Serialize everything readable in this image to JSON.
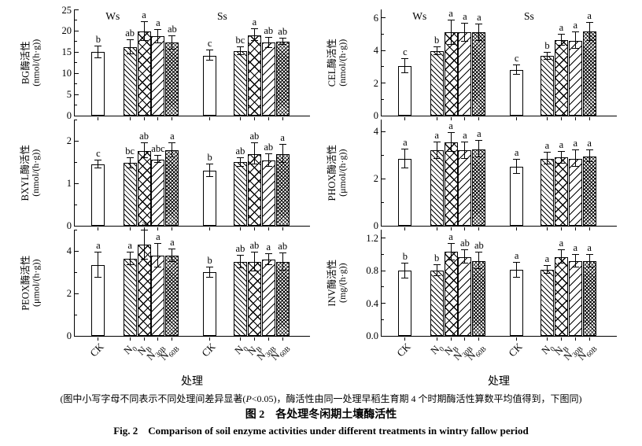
{
  "figure": {
    "group_labels": [
      "Ws",
      "Ss"
    ],
    "xaxis_title": "处理",
    "treatments": [
      {
        "main": "CK",
        "sub": ""
      },
      {
        "main": "N",
        "sub": "0"
      },
      {
        "main": "N",
        "sub": "B"
      },
      {
        "main": "N",
        "sub": "30B"
      },
      {
        "main": "N",
        "sub": "60B"
      }
    ],
    "caption": {
      "note_prefix": "(图中小写字母不同表示不同处理间差异显著(",
      "note_italic": "P",
      "note_suffix": "<0.05)，酶活性由同一处理早稻生育期 4 个时期酶活性算数平均值得到，下图同)",
      "title_cn": "图 2　各处理冬闲期土壤酶活性",
      "title_en": "Fig. 2　Comparison of soil enzyme activities under different treatments in wintry fallow period"
    },
    "colors": {
      "axis": "#000000",
      "bar_fill": "#ffffff",
      "hatch": "#000000"
    }
  },
  "chart_data": [
    {
      "type": "bar",
      "key": "BG",
      "ylabel_cn": "BG酶活性",
      "unit": "(nmol/(h·g))",
      "categories": [
        "CK",
        "N0",
        "NB",
        "N30B",
        "N60B"
      ],
      "ylim": [
        0,
        25
      ],
      "axis_top": 25,
      "major_ticks": [
        0,
        5,
        10,
        15,
        20,
        25
      ],
      "minor_step": 2.5,
      "tick_decimals": 0,
      "groups": [
        {
          "name": "Ws",
          "values": [
            15.0,
            16.2,
            19.9,
            18.7,
            17.2
          ],
          "errors": [
            1.4,
            1.7,
            2.3,
            1.6,
            1.5
          ],
          "letters": [
            "b",
            "ab",
            "a",
            "a",
            "ab"
          ]
        },
        {
          "name": "Ss",
          "values": [
            14.2,
            15.3,
            19.0,
            17.2,
            17.5
          ],
          "errors": [
            1.2,
            0.9,
            1.4,
            1.2,
            0.7
          ],
          "letters": [
            "c",
            "bc",
            "a",
            "ab",
            "ab"
          ]
        }
      ]
    },
    {
      "type": "bar",
      "key": "BXYL",
      "ylabel_cn": "BXYL酶活性",
      "unit": "(nmol/(h·g))",
      "categories": [
        "CK",
        "N0",
        "NB",
        "N30B",
        "N60B"
      ],
      "ylim": [
        0,
        2.5
      ],
      "axis_top": 2.5,
      "major_ticks": [
        0,
        1,
        2
      ],
      "minor_step": 0.5,
      "tick_decimals": 0,
      "groups": [
        {
          "name": "Ws",
          "values": [
            1.45,
            1.48,
            1.77,
            1.57,
            1.79
          ],
          "errors": [
            0.1,
            0.12,
            0.18,
            0.08,
            0.17
          ],
          "letters": [
            "c",
            "bc",
            "ab",
            "abc",
            "a"
          ]
        },
        {
          "name": "Ss",
          "values": [
            1.3,
            1.5,
            1.7,
            1.55,
            1.7
          ],
          "errors": [
            0.15,
            0.1,
            0.25,
            0.15,
            0.22
          ],
          "letters": [
            "b",
            "ab",
            "ab",
            "ab",
            "a"
          ]
        }
      ]
    },
    {
      "type": "bar",
      "key": "PEOX",
      "ylabel_cn": "PEOX酶活性",
      "unit": "(μmol/(h·g))",
      "categories": [
        "CK",
        "N0",
        "NB",
        "N30B",
        "N60B"
      ],
      "ylim": [
        0,
        5
      ],
      "axis_top": 5,
      "major_ticks": [
        0,
        2,
        4
      ],
      "minor_step": 1,
      "tick_decimals": 0,
      "groups": [
        {
          "name": "Ws",
          "values": [
            3.35,
            3.65,
            4.3,
            3.8,
            3.8
          ],
          "errors": [
            0.6,
            0.3,
            0.7,
            0.55,
            0.3
          ],
          "letters": [
            "a",
            "a",
            "a",
            "a",
            "a"
          ]
        },
        {
          "name": "Ss",
          "values": [
            3.0,
            3.5,
            3.5,
            3.6,
            3.5
          ],
          "errors": [
            0.25,
            0.3,
            0.45,
            0.25,
            0.4
          ],
          "letters": [
            "b",
            "ab",
            "ab",
            "a",
            "ab"
          ]
        }
      ]
    },
    {
      "type": "bar",
      "key": "CEL",
      "ylabel_cn": "CEL酶活性",
      "unit": "(nmol/(h·g))",
      "categories": [
        "CK",
        "N0",
        "NB",
        "N30B",
        "N60B"
      ],
      "ylim": [
        0,
        6.5
      ],
      "axis_top": 6.5,
      "major_ticks": [
        0,
        2,
        4,
        6
      ],
      "minor_step": 1,
      "tick_decimals": 0,
      "groups": [
        {
          "name": "Ws",
          "values": [
            3.05,
            3.95,
            5.1,
            5.1,
            5.1
          ],
          "errors": [
            0.45,
            0.25,
            0.75,
            0.55,
            0.5
          ],
          "letters": [
            "c",
            "b",
            "a",
            "a",
            "a"
          ]
        },
        {
          "name": "Ss",
          "values": [
            2.8,
            3.65,
            4.65,
            4.6,
            5.15
          ],
          "errors": [
            0.3,
            0.2,
            0.35,
            0.5,
            0.55
          ],
          "letters": [
            "c",
            "b",
            "a",
            "a",
            "a"
          ]
        }
      ]
    },
    {
      "type": "bar",
      "key": "PHOX",
      "ylabel_cn": "PHOX酶活性",
      "unit": "(μmol/(h·g))",
      "categories": [
        "CK",
        "N0",
        "NB",
        "N30B",
        "N60B"
      ],
      "ylim": [
        0,
        4.5
      ],
      "axis_top": 4.5,
      "major_ticks": [
        0,
        2,
        4
      ],
      "minor_step": 1,
      "tick_decimals": 0,
      "groups": [
        {
          "name": "Ws",
          "values": [
            2.85,
            3.2,
            3.55,
            3.2,
            3.25
          ],
          "errors": [
            0.4,
            0.35,
            0.4,
            0.35,
            0.35
          ],
          "letters": [
            "a",
            "a",
            "a",
            "a",
            "a"
          ]
        },
        {
          "name": "Ss",
          "values": [
            2.5,
            2.85,
            2.9,
            2.85,
            2.95
          ],
          "errors": [
            0.3,
            0.25,
            0.25,
            0.35,
            0.25
          ],
          "letters": [
            "a",
            "a",
            "a",
            "a",
            "a"
          ]
        }
      ]
    },
    {
      "type": "bar",
      "key": "INV",
      "ylabel_cn": "INV酶活性",
      "unit": "(mg/(h·g))",
      "categories": [
        "CK",
        "N0",
        "NB",
        "N30B",
        "N60B"
      ],
      "ylim": [
        0,
        1.3
      ],
      "axis_top": 1.3,
      "major_ticks": [
        0,
        0.4,
        0.8,
        1.2
      ],
      "minor_step": 0.2,
      "tick_decimals": 1,
      "groups": [
        {
          "name": "Ws",
          "values": [
            0.8,
            0.8,
            1.03,
            0.97,
            0.92
          ],
          "errors": [
            0.09,
            0.07,
            0.1,
            0.08,
            0.1
          ],
          "letters": [
            "b",
            "b",
            "a",
            "ab",
            "ab"
          ]
        },
        {
          "name": "Ss",
          "values": [
            0.81,
            0.81,
            0.97,
            0.92,
            0.92
          ],
          "errors": [
            0.09,
            0.05,
            0.08,
            0.08,
            0.08
          ],
          "letters": [
            "a",
            "a",
            "a",
            "a",
            "a"
          ]
        }
      ]
    }
  ]
}
